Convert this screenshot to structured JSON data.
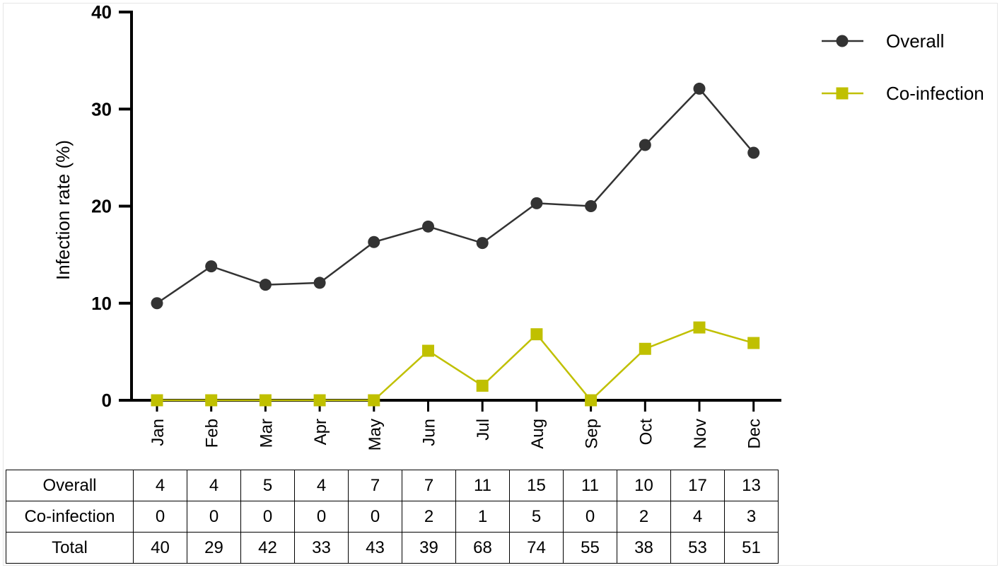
{
  "chart_data": {
    "type": "line",
    "title": "",
    "xlabel": "",
    "ylabel": "Infection rate (%)",
    "ylim": [
      0,
      40
    ],
    "yticks": [
      0,
      10,
      20,
      30,
      40
    ],
    "categories": [
      "Jan",
      "Feb",
      "Mar",
      "Apr",
      "May",
      "Jun",
      "Jul",
      "Aug",
      "Sep",
      "Oct",
      "Nov",
      "Dec"
    ],
    "legend_position": "top-right",
    "grid": false,
    "series": [
      {
        "name": "Overall",
        "marker": "circle",
        "color": "#333333",
        "values": [
          10.0,
          13.8,
          11.9,
          12.1,
          16.3,
          17.9,
          16.2,
          20.3,
          20.0,
          26.3,
          32.1,
          25.5
        ]
      },
      {
        "name": "Co-infection",
        "marker": "square",
        "color": "#c0c000",
        "values": [
          0,
          0,
          0,
          0,
          0,
          5.1,
          1.5,
          6.8,
          0,
          5.3,
          7.5,
          5.9
        ]
      }
    ]
  },
  "table": {
    "rows": [
      {
        "label": "Overall",
        "values": [
          "4",
          "4",
          "5",
          "4",
          "7",
          "7",
          "11",
          "15",
          "11",
          "10",
          "17",
          "13"
        ]
      },
      {
        "label": "Co-infection",
        "values": [
          "0",
          "0",
          "0",
          "0",
          "0",
          "2",
          "1",
          "5",
          "0",
          "2",
          "4",
          "3"
        ]
      },
      {
        "label": "Total",
        "values": [
          "40",
          "29",
          "42",
          "33",
          "43",
          "39",
          "68",
          "74",
          "55",
          "38",
          "53",
          "51"
        ]
      }
    ]
  }
}
